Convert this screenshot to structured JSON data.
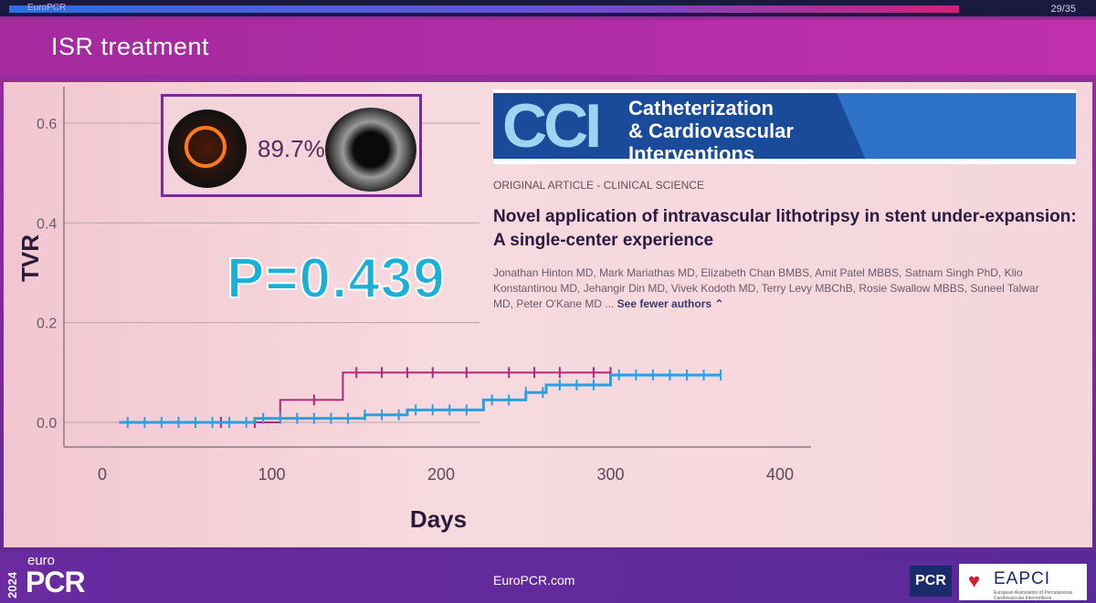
{
  "slide": {
    "top_left_label": "EuroPCR",
    "page_counter": "29/35",
    "title": "ISR treatment"
  },
  "ivl_inset": {
    "percent": "89.7%"
  },
  "p_value": "P=0.439",
  "journal": {
    "acronym": "CCI",
    "name_line1": "Catheterization",
    "name_line2": "& Cardiovascular",
    "name_line3": "Interventions",
    "article_type": "ORIGINAL ARTICLE - CLINICAL SCIENCE",
    "article_title": "Novel application of intravascular lithotripsy in stent under-expansion: A single-center experience",
    "authors": "Jonathan Hinton MD, Mark Mariathas MD, Elizabeth Chan BMBS, Amit Patel MBBS, Satnam Singh PhD, Klio Konstantinou MD, Jehangir Din MD, Vivek Kodoth MD, Terry Levy MBChB, Rosie Swallow MBBS, Suneel Talwar MD, Peter O'Kane MD ...",
    "see_fewer": "See fewer authors ⌃"
  },
  "footer": {
    "year": "2024",
    "brand_euro": "euro",
    "brand_pcr": "PCR",
    "url": "EuroPCR.com",
    "pcr_badge": "PCR",
    "eapci": "EAPCI",
    "eapci_sub": "European Association of Percutaneous Cardiovascular Interventions"
  },
  "colors": {
    "series_magenta": "#b0287a",
    "series_blue": "#2aa0e0",
    "axis": "#8a7a8a",
    "grid": "#b8a4ac"
  },
  "chart_data": {
    "type": "line",
    "xlabel": "Days",
    "ylabel": "TVR",
    "xlim": [
      0,
      420
    ],
    "ylim": [
      0,
      0.65
    ],
    "x_ticks": [
      0,
      100,
      200,
      300,
      400
    ],
    "y_ticks": [
      0.0,
      0.2,
      0.4,
      0.6
    ],
    "y_tick_labels": [
      "0.0",
      "0.2",
      "0.4",
      "0.6"
    ],
    "grid": "horizontal",
    "series": [
      {
        "color": "magenta",
        "step_points": [
          [
            10,
            0.0
          ],
          [
            105,
            0.0
          ],
          [
            105,
            0.045
          ],
          [
            142,
            0.045
          ],
          [
            142,
            0.1
          ],
          [
            300,
            0.1
          ]
        ],
        "censor_x": [
          45,
          70,
          90,
          125,
          150,
          165,
          180,
          195,
          215,
          240,
          255,
          270,
          290,
          300
        ]
      },
      {
        "color": "blue",
        "step_points": [
          [
            10,
            0.0
          ],
          [
            90,
            0.0
          ],
          [
            90,
            0.008
          ],
          [
            155,
            0.008
          ],
          [
            155,
            0.015
          ],
          [
            180,
            0.015
          ],
          [
            180,
            0.025
          ],
          [
            225,
            0.025
          ],
          [
            225,
            0.045
          ],
          [
            250,
            0.045
          ],
          [
            250,
            0.06
          ],
          [
            262,
            0.06
          ],
          [
            262,
            0.075
          ],
          [
            300,
            0.075
          ],
          [
            300,
            0.095
          ],
          [
            365,
            0.095
          ]
        ],
        "censor_x": [
          15,
          25,
          35,
          45,
          55,
          65,
          75,
          85,
          95,
          105,
          115,
          125,
          135,
          145,
          155,
          165,
          175,
          185,
          195,
          205,
          215,
          230,
          240,
          250,
          260,
          270,
          280,
          290,
          305,
          315,
          325,
          335,
          345,
          355,
          365
        ]
      }
    ]
  }
}
